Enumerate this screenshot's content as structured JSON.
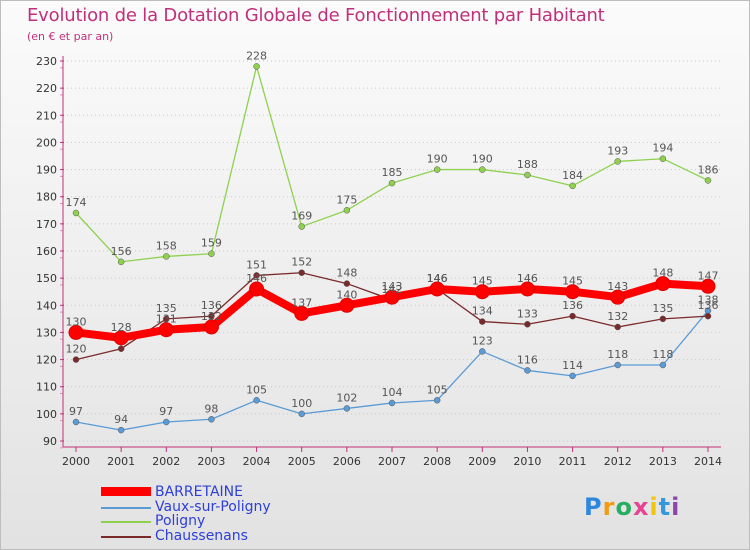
{
  "title": "Evolution de la Dotation Globale de Fonctionnement par Habitant",
  "subtitle": "(en € et par an)",
  "chart_data": {
    "type": "line",
    "title": "Evolution de la Dotation Globale de Fonctionnement par Habitant",
    "ylabel": "(en € et par an)",
    "xlabel": "",
    "x": [
      "2000",
      "2001",
      "2002",
      "2003",
      "2004",
      "2005",
      "2006",
      "2007",
      "2008",
      "2009",
      "2010",
      "2011",
      "2012",
      "2013",
      "2014"
    ],
    "ylim": [
      90,
      230
    ],
    "yticks": [
      90,
      100,
      110,
      120,
      130,
      140,
      150,
      160,
      170,
      180,
      190,
      200,
      210,
      220,
      230
    ],
    "grid": "horizontal dotted",
    "legend_position": "bottom-left",
    "series": [
      {
        "name": "BARRETAINE",
        "color": "#ff0000",
        "values": [
          130,
          128,
          131,
          132,
          146,
          137,
          140,
          143,
          146,
          145,
          146,
          145,
          143,
          148,
          147
        ],
        "labels": [
          "130",
          "128",
          "131",
          "132",
          "146",
          "137",
          "140",
          "143",
          "146",
          "145",
          "146",
          "145",
          "143",
          "148",
          "147"
        ]
      },
      {
        "name": "Vaux-sur-Poligny",
        "color": "#5b9bd5",
        "values": [
          97,
          94,
          97,
          98,
          105,
          100,
          102,
          104,
          105,
          123,
          116,
          114,
          118,
          118,
          138
        ],
        "labels": [
          "97",
          "94",
          "97",
          "98",
          "105",
          "100",
          "102",
          "104",
          "105",
          "123",
          "116",
          "114",
          "118",
          "118",
          "138"
        ]
      },
      {
        "name": "Poligny",
        "color": "#8fd14f",
        "values": [
          174,
          156,
          158,
          159,
          228,
          169,
          175,
          185,
          190,
          190,
          188,
          184,
          193,
          194,
          186
        ],
        "labels": [
          "174",
          "156",
          "158",
          "159",
          "228",
          "169",
          "175",
          "185",
          "190",
          "190",
          "188",
          "184",
          "193",
          "194",
          "186"
        ]
      },
      {
        "name": "Chaussenans",
        "color": "#7a2a2a",
        "values": [
          120,
          124,
          135,
          136,
          151,
          152,
          148,
          142,
          146,
          134,
          133,
          136,
          132,
          135,
          136
        ],
        "labels": [
          "120",
          "",
          "135",
          "136",
          "151",
          "152",
          "148",
          "142",
          "146",
          "134",
          "133",
          "136",
          "132",
          "135",
          "136"
        ]
      }
    ]
  },
  "logo": {
    "letters": [
      "P",
      "r",
      "o",
      "x",
      "i",
      "t",
      "i"
    ],
    "colors": [
      "#2e86de",
      "#f39c12",
      "#27ae60",
      "#e84393",
      "#f1c40f",
      "#3498db",
      "#8e44ad"
    ]
  }
}
